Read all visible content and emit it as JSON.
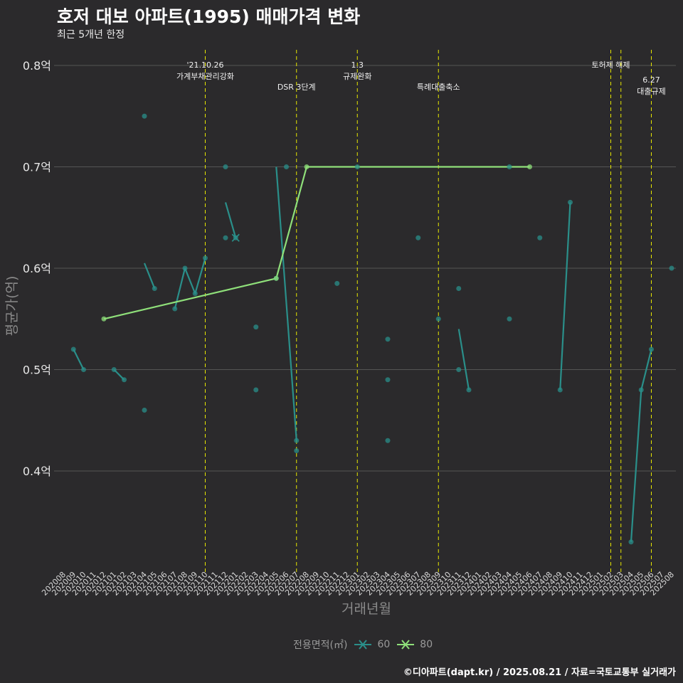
{
  "header": {
    "title": "호저 대보 아파트(1995) 매매가격 변화",
    "subtitle": "최근 5개년 한정"
  },
  "caption": "©디아파트(dapt.kr) / 2025.08.21 / 자료=국토교통부 실거래가",
  "legend": {
    "title": "전용면적(㎡)",
    "items": [
      {
        "label": "60",
        "color": "#2a8f8a"
      },
      {
        "label": "80",
        "color": "#8fe07a"
      }
    ]
  },
  "colors": {
    "background": "#2b2a2c",
    "grid": "#555555",
    "vline": "#e8e800"
  },
  "chart_data": {
    "type": "line",
    "title": "호저 대보 아파트(1995) 매매가격 변화",
    "xlabel": "거래년월",
    "ylabel": "평균가(억)",
    "ylim": [
      0.31,
      0.81
    ],
    "yticks": [
      {
        "v": 0.4,
        "label": "0.4억"
      },
      {
        "v": 0.5,
        "label": "0.5억"
      },
      {
        "v": 0.6,
        "label": "0.6억"
      },
      {
        "v": 0.7,
        "label": "0.7억"
      },
      {
        "v": 0.8,
        "label": "0.8억"
      }
    ],
    "categories": [
      "202008",
      "202009",
      "202010",
      "202011",
      "202012",
      "202101",
      "202102",
      "202103",
      "202104",
      "202105",
      "202106",
      "202107",
      "202108",
      "202109",
      "202110",
      "202111",
      "202112",
      "202201",
      "202202",
      "202203",
      "202204",
      "202205",
      "202206",
      "202207",
      "202208",
      "202209",
      "202210",
      "202211",
      "202212",
      "202301",
      "202302",
      "202303",
      "202304",
      "202305",
      "202306",
      "202307",
      "202308",
      "202309",
      "202310",
      "202311",
      "202312",
      "202401",
      "202402",
      "202403",
      "202404",
      "202405",
      "202406",
      "202407",
      "202408",
      "202409",
      "202410",
      "202411",
      "202412",
      "202501",
      "202502",
      "202503",
      "202504",
      "202505",
      "202506",
      "202507",
      "202508"
    ],
    "series": [
      {
        "name": "60",
        "color": "#2a8f8a",
        "line_segments": [
          [
            [
              "202009",
              0.52
            ],
            [
              "202010",
              0.5
            ]
          ],
          [
            [
              "202101",
              0.5
            ],
            [
              "202102",
              0.49
            ]
          ],
          [
            [
              "202104",
              0.605
            ],
            [
              "202105",
              0.58
            ]
          ],
          [
            [
              "202107",
              0.56
            ],
            [
              "202108",
              0.6
            ],
            [
              "202109",
              0.575
            ],
            [
              "202110",
              0.61
            ]
          ],
          [
            [
              "202112",
              0.665
            ],
            [
              "202201",
              0.63
            ]
          ],
          [
            [
              "202205",
              0.7
            ],
            [
              "202207",
              0.43
            ]
          ],
          [
            [
              "202311",
              0.54
            ],
            [
              "202312",
              0.48
            ]
          ],
          [
            [
              "202409",
              0.48
            ],
            [
              "202410",
              0.665
            ]
          ],
          [
            [
              "202504",
              0.33
            ],
            [
              "202505",
              0.48
            ],
            [
              "202506",
              0.52
            ]
          ]
        ],
        "points": [
          [
            "202009",
            0.52
          ],
          [
            "202010",
            0.5
          ],
          [
            "202101",
            0.5
          ],
          [
            "202102",
            0.49
          ],
          [
            "202104",
            0.75
          ],
          [
            "202104",
            0.46
          ],
          [
            "202105",
            0.58
          ],
          [
            "202107",
            0.56
          ],
          [
            "202108",
            0.6
          ],
          [
            "202109",
            0.575
          ],
          [
            "202110",
            0.61
          ],
          [
            "202112",
            0.7
          ],
          [
            "202112",
            0.63
          ],
          [
            "202201",
            0.63
          ],
          [
            "202203",
            0.542
          ],
          [
            "202203",
            0.48
          ],
          [
            "202205",
            0.59
          ],
          [
            "202206",
            0.7
          ],
          [
            "202207",
            0.43
          ],
          [
            "202207",
            0.42
          ],
          [
            "202211",
            0.585
          ],
          [
            "202301",
            0.7
          ],
          [
            "202304",
            0.53
          ],
          [
            "202304",
            0.49
          ],
          [
            "202304",
            0.43
          ],
          [
            "202307",
            0.63
          ],
          [
            "202309",
            0.55
          ],
          [
            "202311",
            0.58
          ],
          [
            "202311",
            0.5
          ],
          [
            "202312",
            0.48
          ],
          [
            "202404",
            0.7
          ],
          [
            "202404",
            0.55
          ],
          [
            "202407",
            0.63
          ],
          [
            "202409",
            0.48
          ],
          [
            "202410",
            0.665
          ],
          [
            "202504",
            0.33
          ],
          [
            "202505",
            0.48
          ],
          [
            "202506",
            0.52
          ],
          [
            "202508",
            0.6
          ]
        ]
      },
      {
        "name": "80",
        "color": "#8fe07a",
        "line_segments": [
          [
            [
              "202012",
              0.55
            ],
            [
              "202205",
              0.59
            ],
            [
              "202208",
              0.7
            ],
            [
              "202406",
              0.7
            ]
          ]
        ],
        "points": [
          [
            "202012",
            0.55
          ],
          [
            "202205",
            0.59
          ],
          [
            "202208",
            0.7
          ],
          [
            "202406",
            0.7
          ]
        ]
      }
    ],
    "events": [
      {
        "at": "202110",
        "lines": [
          "'21.10.26",
          "가계부채관리강화"
        ],
        "level": 0
      },
      {
        "at": "202207",
        "lines": [
          "DSR 3단계"
        ],
        "level": 1
      },
      {
        "at": "202301",
        "lines": [
          "1.3",
          "규제완화"
        ],
        "level": 0
      },
      {
        "at": "202309",
        "lines": [
          "특례대출축소"
        ],
        "level": 1
      },
      {
        "at": "202502",
        "lines": [
          "토허제 해제"
        ],
        "level": 0
      },
      {
        "at": "202503",
        "lines": [],
        "level": 0
      },
      {
        "at": "202506",
        "lines": [
          "6.27",
          "대출규제"
        ],
        "level": 1
      }
    ]
  }
}
